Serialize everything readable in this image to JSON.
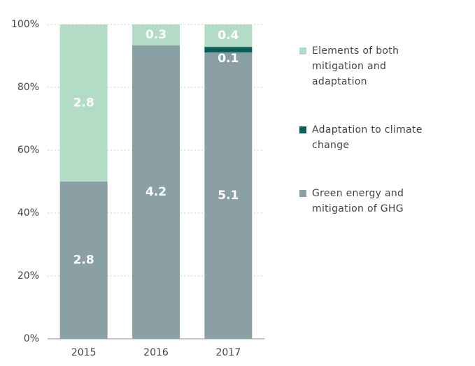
{
  "chart_data": {
    "type": "bar",
    "stacking": "percent",
    "categories": [
      "2015",
      "2016",
      "2017"
    ],
    "series": [
      {
        "name": "Green energy and mitigation of GHG",
        "color": "#8aa0a4",
        "values": [
          2.8,
          4.2,
          5.1
        ]
      },
      {
        "name": "Adaptation to climate change",
        "color": "#0b5e58",
        "values": [
          null,
          null,
          0.1
        ]
      },
      {
        "name": "Elements of both mitigation and adaptation",
        "color": "#b3dcc6",
        "values": [
          2.8,
          0.3,
          0.4
        ]
      }
    ],
    "ylim": [
      0,
      100
    ],
    "yticks": [
      {
        "value": 0,
        "label": "0%"
      },
      {
        "value": 20,
        "label": "20%"
      },
      {
        "value": 40,
        "label": "40%"
      },
      {
        "value": 60,
        "label": "60%"
      },
      {
        "value": 80,
        "label": "80%"
      },
      {
        "value": 100,
        "label": "100%"
      }
    ],
    "grid": true,
    "legend": "right"
  }
}
